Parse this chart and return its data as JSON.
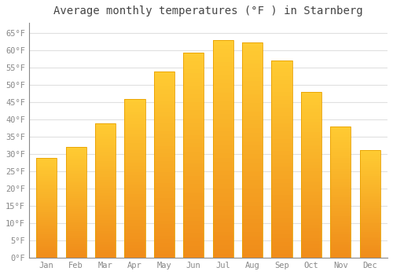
{
  "title": "Average monthly temperatures (°F ) in Starnberg",
  "months": [
    "Jan",
    "Feb",
    "Mar",
    "Apr",
    "May",
    "Jun",
    "Jul",
    "Aug",
    "Sep",
    "Oct",
    "Nov",
    "Dec"
  ],
  "values": [
    29.0,
    32.0,
    39.0,
    46.0,
    54.0,
    59.3,
    63.0,
    62.4,
    57.2,
    48.0,
    38.0,
    31.2
  ],
  "bar_color_top": "#FDB813",
  "bar_color_bottom": "#F08000",
  "bar_edge_color": "#E8A000",
  "ylim": [
    0,
    68
  ],
  "yticks": [
    0,
    5,
    10,
    15,
    20,
    25,
    30,
    35,
    40,
    45,
    50,
    55,
    60,
    65
  ],
  "ytick_labels": [
    "0°F",
    "5°F",
    "10°F",
    "15°F",
    "20°F",
    "25°F",
    "30°F",
    "35°F",
    "40°F",
    "45°F",
    "50°F",
    "55°F",
    "60°F",
    "65°F"
  ],
  "background_color": "#ffffff",
  "grid_color": "#e0e0e0",
  "title_fontsize": 10,
  "tick_fontsize": 7.5,
  "bar_width": 0.7,
  "title_font": "monospace",
  "tick_font": "monospace",
  "tick_color": "#888888",
  "spine_color": "#888888"
}
